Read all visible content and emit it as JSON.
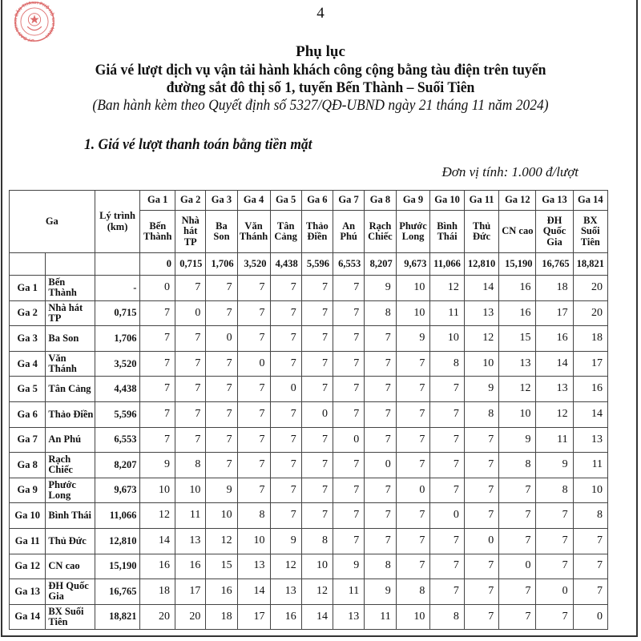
{
  "page_number": "4",
  "stamp_text": "ỦY BAN NHÂN DÂN THÀNH PHỐ HỒ CHÍ MINH",
  "stamp_color": "#d23b3b",
  "heading": {
    "title": "Phụ lục",
    "line1": "Giá vé lượt dịch vụ vận tải hành khách công cộng bằng tàu điện trên tuyến",
    "line2": "đường sắt đô thị số 1, tuyến Bến Thành – Suối Tiên",
    "line3": "(Ban hành kèm theo Quyết định số 5327/QĐ-UBND ngày 21 tháng 11 năm 2024)"
  },
  "section_title": "1. Giá vé lượt thanh toán bằng tiền mặt",
  "unit_note": "Đơn vị tính: 1.000 đ/lượt",
  "table": {
    "col_ga": "Ga",
    "col_distance": "Lý trình (km)",
    "stations": [
      {
        "id": "Ga 1",
        "name": "Bến Thành",
        "km": "0"
      },
      {
        "id": "Ga 2",
        "name": "Nhà hát TP",
        "km": "0,715"
      },
      {
        "id": "Ga 3",
        "name": "Ba Son",
        "km": "1,706"
      },
      {
        "id": "Ga 4",
        "name": "Văn Thánh",
        "km": "3,520"
      },
      {
        "id": "Ga 5",
        "name": "Tân Cảng",
        "km": "4,438"
      },
      {
        "id": "Ga 6",
        "name": "Thảo Điền",
        "km": "5,596"
      },
      {
        "id": "Ga 7",
        "name": "An Phú",
        "km": "6,553"
      },
      {
        "id": "Ga 8",
        "name": "Rạch Chiếc",
        "km": "8,207"
      },
      {
        "id": "Ga 9",
        "name": "Phước Long",
        "km": "9,673"
      },
      {
        "id": "Ga 10",
        "name": "Bình Thái",
        "km": "11,066"
      },
      {
        "id": "Ga 11",
        "name": "Thủ Đức",
        "km": "12,810"
      },
      {
        "id": "Ga 12",
        "name": "CN cao",
        "km": "15,190"
      },
      {
        "id": "Ga 13",
        "name": "ĐH Quốc Gia",
        "km": "16,765"
      },
      {
        "id": "Ga 14",
        "name": "BX Suối Tiên",
        "km": "18,821"
      }
    ],
    "rows": [
      {
        "id": "Ga 1",
        "name": "Bến Thành",
        "km": "-",
        "fares": [
          "0",
          "7",
          "7",
          "7",
          "7",
          "7",
          "7",
          "9",
          "10",
          "12",
          "14",
          "16",
          "18",
          "20"
        ]
      },
      {
        "id": "Ga 2",
        "name": "Nhà hát TP",
        "km": "0,715",
        "fares": [
          "7",
          "0",
          "7",
          "7",
          "7",
          "7",
          "7",
          "8",
          "10",
          "11",
          "13",
          "16",
          "17",
          "20"
        ]
      },
      {
        "id": "Ga 3",
        "name": "Ba Son",
        "km": "1,706",
        "fares": [
          "7",
          "7",
          "0",
          "7",
          "7",
          "7",
          "7",
          "7",
          "9",
          "10",
          "12",
          "15",
          "16",
          "18"
        ]
      },
      {
        "id": "Ga 4",
        "name": "Văn Thánh",
        "km": "3,520",
        "fares": [
          "7",
          "7",
          "7",
          "0",
          "7",
          "7",
          "7",
          "7",
          "7",
          "8",
          "10",
          "13",
          "14",
          "17"
        ]
      },
      {
        "id": "Ga 5",
        "name": "Tân Cảng",
        "km": "4,438",
        "fares": [
          "7",
          "7",
          "7",
          "7",
          "0",
          "7",
          "7",
          "7",
          "7",
          "7",
          "9",
          "12",
          "13",
          "16"
        ]
      },
      {
        "id": "Ga 6",
        "name": "Thảo Điền",
        "km": "5,596",
        "fares": [
          "7",
          "7",
          "7",
          "7",
          "7",
          "0",
          "7",
          "7",
          "7",
          "7",
          "8",
          "10",
          "12",
          "14"
        ]
      },
      {
        "id": "Ga 7",
        "name": "An Phú",
        "km": "6,553",
        "fares": [
          "7",
          "7",
          "7",
          "7",
          "7",
          "7",
          "0",
          "7",
          "7",
          "7",
          "7",
          "9",
          "11",
          "13"
        ]
      },
      {
        "id": "Ga 8",
        "name": "Rạch Chiếc",
        "km": "8,207",
        "fares": [
          "9",
          "8",
          "7",
          "7",
          "7",
          "7",
          "7",
          "0",
          "7",
          "7",
          "7",
          "8",
          "9",
          "11"
        ]
      },
      {
        "id": "Ga 9",
        "name": "Phước Long",
        "km": "9,673",
        "fares": [
          "10",
          "10",
          "9",
          "7",
          "7",
          "7",
          "7",
          "7",
          "0",
          "7",
          "7",
          "7",
          "8",
          "10"
        ]
      },
      {
        "id": "Ga 10",
        "name": "Bình Thái",
        "km": "11,066",
        "fares": [
          "12",
          "11",
          "10",
          "8",
          "7",
          "7",
          "7",
          "7",
          "7",
          "0",
          "7",
          "7",
          "7",
          "8"
        ]
      },
      {
        "id": "Ga 11",
        "name": "Thủ Đức",
        "km": "12,810",
        "fares": [
          "14",
          "13",
          "12",
          "10",
          "9",
          "8",
          "7",
          "7",
          "7",
          "7",
          "0",
          "7",
          "7",
          "7"
        ]
      },
      {
        "id": "Ga 12",
        "name": "CN cao",
        "km": "15,190",
        "fares": [
          "16",
          "16",
          "15",
          "13",
          "12",
          "10",
          "9",
          "8",
          "7",
          "7",
          "7",
          "0",
          "7",
          "7"
        ]
      },
      {
        "id": "Ga 13",
        "name": "ĐH Quốc Gia",
        "km": "16,765",
        "fares": [
          "18",
          "17",
          "16",
          "14",
          "13",
          "12",
          "11",
          "9",
          "8",
          "7",
          "7",
          "7",
          "0",
          "7"
        ]
      },
      {
        "id": "Ga 14",
        "name": "BX Suối Tiên",
        "km": "18,821",
        "fares": [
          "20",
          "20",
          "18",
          "17",
          "16",
          "14",
          "13",
          "11",
          "10",
          "8",
          "7",
          "7",
          "7",
          "0"
        ]
      }
    ]
  }
}
